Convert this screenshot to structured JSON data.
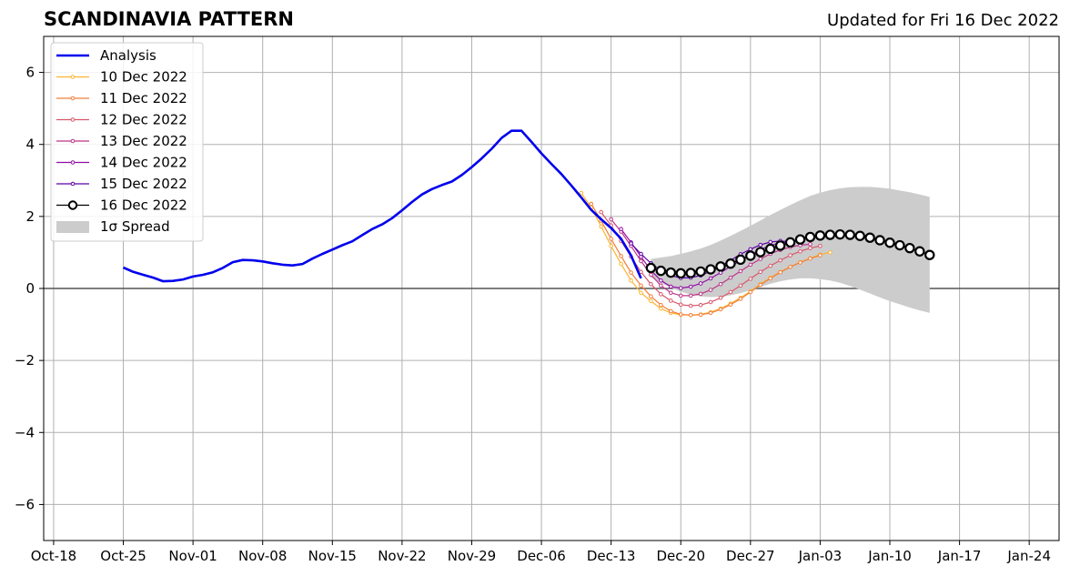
{
  "chart_data": {
    "type": "line",
    "title": "SCANDINAVIA PATTERN",
    "subtitle": "Updated for Fri 16 Dec 2022",
    "xlabel": "",
    "ylabel": "",
    "xlim": [
      "2022-10-17",
      "2023-01-27"
    ],
    "ylim": [
      -7,
      7
    ],
    "grid": true,
    "legend_position": "top-left",
    "x_ticks": [
      "2022-10-18",
      "2022-10-25",
      "2022-11-01",
      "2022-11-08",
      "2022-11-15",
      "2022-11-22",
      "2022-11-29",
      "2022-12-06",
      "2022-12-13",
      "2022-12-20",
      "2022-12-27",
      "2023-01-03",
      "2023-01-10",
      "2023-01-17",
      "2023-01-24"
    ],
    "x_tick_labels": [
      "Oct-18",
      "Oct-25",
      "Nov-01",
      "Nov-08",
      "Nov-15",
      "Nov-22",
      "Nov-29",
      "Dec-06",
      "Dec-13",
      "Dec-20",
      "Dec-27",
      "Jan-03",
      "Jan-10",
      "Jan-17",
      "Jan-24"
    ],
    "y_ticks": [
      -6,
      -4,
      -2,
      0,
      2,
      4,
      6
    ],
    "y_tick_labels": [
      "−6",
      "−4",
      "−2",
      "0",
      "2",
      "4",
      "6"
    ],
    "analysis": {
      "name": "Analysis",
      "color": "#0000ee",
      "points": [
        [
          "2022-10-25",
          0.58
        ],
        [
          "2022-10-26",
          0.46
        ],
        [
          "2022-10-27",
          0.38
        ],
        [
          "2022-10-28",
          0.3
        ],
        [
          "2022-10-29",
          0.2
        ],
        [
          "2022-10-30",
          0.21
        ],
        [
          "2022-10-31",
          0.25
        ],
        [
          "2022-11-01",
          0.33
        ],
        [
          "2022-11-02",
          0.38
        ],
        [
          "2022-11-03",
          0.45
        ],
        [
          "2022-11-04",
          0.57
        ],
        [
          "2022-11-05",
          0.73
        ],
        [
          "2022-11-06",
          0.79
        ],
        [
          "2022-11-07",
          0.78
        ],
        [
          "2022-11-08",
          0.75
        ],
        [
          "2022-11-09",
          0.7
        ],
        [
          "2022-11-10",
          0.66
        ],
        [
          "2022-11-11",
          0.64
        ],
        [
          "2022-11-12",
          0.68
        ],
        [
          "2022-11-13",
          0.83
        ],
        [
          "2022-11-14",
          0.96
        ],
        [
          "2022-11-15",
          1.08
        ],
        [
          "2022-11-16",
          1.2
        ],
        [
          "2022-11-17",
          1.31
        ],
        [
          "2022-11-18",
          1.48
        ],
        [
          "2022-11-19",
          1.65
        ],
        [
          "2022-11-20",
          1.78
        ],
        [
          "2022-11-21",
          1.95
        ],
        [
          "2022-11-22",
          2.17
        ],
        [
          "2022-11-23",
          2.4
        ],
        [
          "2022-11-24",
          2.61
        ],
        [
          "2022-11-25",
          2.76
        ],
        [
          "2022-11-26",
          2.87
        ],
        [
          "2022-11-27",
          2.97
        ],
        [
          "2022-11-28",
          3.15
        ],
        [
          "2022-11-29",
          3.37
        ],
        [
          "2022-11-30",
          3.61
        ],
        [
          "2022-12-01",
          3.88
        ],
        [
          "2022-12-02",
          4.18
        ],
        [
          "2022-12-03",
          4.38
        ],
        [
          "2022-12-04",
          4.38
        ],
        [
          "2022-12-05",
          4.07
        ],
        [
          "2022-12-06",
          3.75
        ],
        [
          "2022-12-07",
          3.46
        ],
        [
          "2022-12-08",
          3.18
        ],
        [
          "2022-12-09",
          2.86
        ],
        [
          "2022-12-10",
          2.53
        ],
        [
          "2022-12-11",
          2.18
        ],
        [
          "2022-12-12",
          1.92
        ],
        [
          "2022-12-13",
          1.68
        ],
        [
          "2022-12-14",
          1.38
        ],
        [
          "2022-12-15",
          0.92
        ],
        [
          "2022-12-16",
          0.28
        ]
      ]
    },
    "forecasts": [
      {
        "name": "10 Dec 2022",
        "color": "#fbb52f",
        "start": "2022-12-10",
        "values": [
          2.65,
          2.25,
          1.72,
          1.18,
          0.68,
          0.22,
          -0.12,
          -0.35,
          -0.56,
          -0.68,
          -0.73,
          -0.74,
          -0.72,
          -0.66,
          -0.56,
          -0.42,
          -0.26,
          -0.08,
          0.12,
          0.3,
          0.46,
          0.6,
          0.73,
          0.84,
          0.94,
          1.0
        ]
      },
      {
        "name": "11 Dec 2022",
        "color": "#f17e3b",
        "start": "2022-12-11",
        "values": [
          2.35,
          1.88,
          1.38,
          0.9,
          0.44,
          0.08,
          -0.22,
          -0.46,
          -0.63,
          -0.72,
          -0.74,
          -0.73,
          -0.68,
          -0.58,
          -0.45,
          -0.29,
          -0.1,
          0.1,
          0.28,
          0.45,
          0.6,
          0.72,
          0.83,
          0.92
        ]
      },
      {
        "name": "12 Dec 2022",
        "color": "#d8576b",
        "start": "2022-12-12",
        "values": [
          2.12,
          1.75,
          1.32,
          0.88,
          0.46,
          0.12,
          -0.16,
          -0.34,
          -0.45,
          -0.48,
          -0.46,
          -0.38,
          -0.26,
          -0.1,
          0.08,
          0.27,
          0.46,
          0.63,
          0.78,
          0.92,
          1.03,
          1.12,
          1.18
        ]
      },
      {
        "name": "13 Dec 2022",
        "color": "#bc3587",
        "start": "2022-12-13",
        "values": [
          1.92,
          1.58,
          1.18,
          0.76,
          0.38,
          0.08,
          -0.12,
          -0.2,
          -0.2,
          -0.15,
          -0.04,
          0.12,
          0.3,
          0.48,
          0.66,
          0.82,
          0.96,
          1.07,
          1.15,
          1.2,
          1.23
        ]
      },
      {
        "name": "14 Dec 2022",
        "color": "#8f0da4",
        "start": "2022-12-14",
        "values": [
          1.65,
          1.28,
          0.88,
          0.5,
          0.22,
          0.05,
          0.01,
          0.05,
          0.14,
          0.28,
          0.44,
          0.61,
          0.78,
          0.94,
          1.08,
          1.19,
          1.27,
          1.3
        ]
      },
      {
        "name": "15 Dec 2022",
        "color": "#5c01a6",
        "start": "2022-12-15",
        "values": [
          1.25,
          0.96,
          0.7,
          0.5,
          0.36,
          0.29,
          0.3,
          0.36,
          0.48,
          0.62,
          0.78,
          0.95,
          1.09,
          1.21,
          1.29,
          1.32,
          1.3
        ]
      },
      {
        "name": "16 Dec 2022",
        "color": "#000000",
        "start": "2022-12-17",
        "values": [
          0.57,
          0.49,
          0.44,
          0.42,
          0.43,
          0.47,
          0.53,
          0.61,
          0.69,
          0.8,
          0.91,
          1.01,
          1.1,
          1.19,
          1.28,
          1.36,
          1.43,
          1.47,
          1.49,
          1.5,
          1.49,
          1.46,
          1.41,
          1.34,
          1.27,
          1.2,
          1.12,
          1.03,
          0.93
        ]
      }
    ],
    "spread": {
      "name": "1σ Spread",
      "color": "#cccccc",
      "start": "2022-12-17",
      "upper": [
        0.82,
        0.86,
        0.9,
        0.96,
        1.03,
        1.11,
        1.21,
        1.33,
        1.46,
        1.6,
        1.74,
        1.89,
        2.04,
        2.18,
        2.32,
        2.45,
        2.57,
        2.66,
        2.73,
        2.78,
        2.81,
        2.82,
        2.82,
        2.8,
        2.77,
        2.72,
        2.67,
        2.61,
        2.54
      ],
      "lower": [
        0.31,
        0.15,
        0.02,
        -0.09,
        -0.17,
        -0.22,
        -0.24,
        -0.23,
        -0.19,
        -0.13,
        -0.05,
        0.04,
        0.13,
        0.2,
        0.25,
        0.28,
        0.28,
        0.26,
        0.22,
        0.16,
        0.07,
        -0.03,
        -0.14,
        -0.25,
        -0.35,
        -0.44,
        -0.53,
        -0.61,
        -0.68
      ]
    }
  }
}
